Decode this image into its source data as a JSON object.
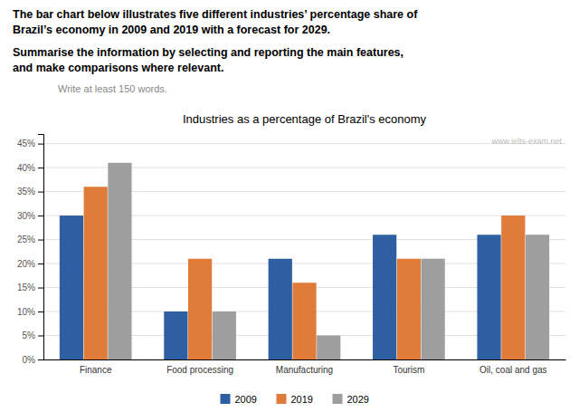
{
  "chart_data": {
    "type": "bar",
    "title": "Industries as a percentage of Brazil's economy",
    "annotations": [
      "The bar chart below illustrates five different industries’ percentage share of\nBrazil’s economy in 2009 and 2019 with a forecast for 2029.",
      "Summarise the information by selecting and reporting the main features,\nand make comparisons where relevant.",
      "Write at least 150 words.",
      "www.ielts-exam.net"
    ],
    "categories": [
      "Finance",
      "Food processing",
      "Manufacturing",
      "Tourism",
      "Oil, coal and gas"
    ],
    "series": [
      {
        "name": "2009",
        "color": "#2E5FA3",
        "values": [
          30,
          10,
          21,
          26,
          26
        ]
      },
      {
        "name": "2019",
        "color": "#E07B39",
        "values": [
          36,
          21,
          16,
          21,
          30
        ]
      },
      {
        "name": "2029",
        "color": "#9E9E9E",
        "values": [
          41,
          10,
          5,
          21,
          26
        ]
      }
    ],
    "ylim": [
      0,
      47
    ],
    "yticks": [
      {
        "value": 0,
        "label": "0%"
      },
      {
        "value": 5,
        "label": "5%"
      },
      {
        "value": 10,
        "label": "10%"
      },
      {
        "value": 15,
        "label": "15%"
      },
      {
        "value": 20,
        "label": "20%"
      },
      {
        "value": 25,
        "label": "25%"
      },
      {
        "value": 30,
        "label": "30%"
      },
      {
        "value": 35,
        "label": "35%"
      },
      {
        "value": 40,
        "label": "40%"
      },
      {
        "value": 45,
        "label": "45%"
      }
    ],
    "grid": true,
    "legend": "bottom"
  }
}
